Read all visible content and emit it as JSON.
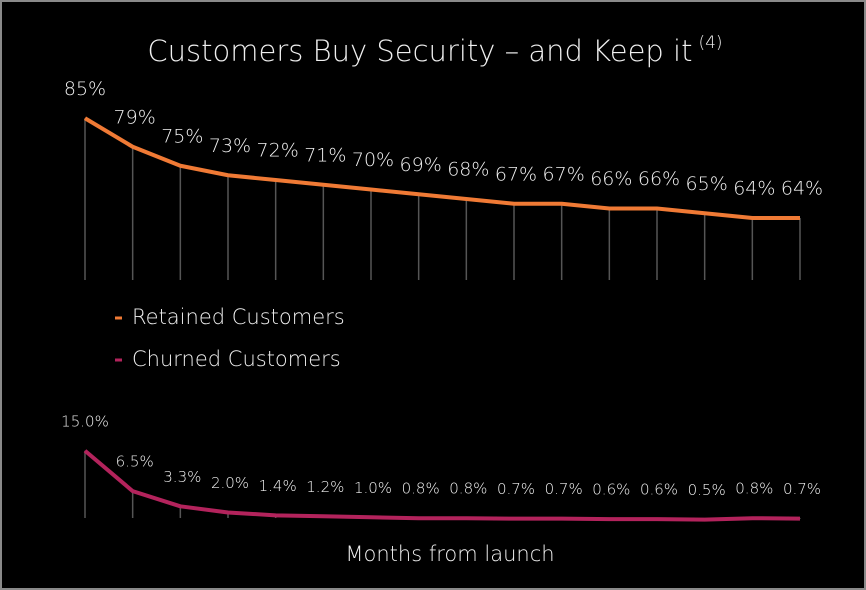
{
  "chart_data": {
    "type": "line",
    "title": "Customers Buy Security – and Keep it",
    "title_superscript": "(4)",
    "x_label": "Months from launch",
    "categories": [
      null,
      null,
      null,
      null,
      null,
      null,
      null,
      null,
      null,
      null,
      null,
      null,
      null,
      null,
      null,
      null
    ],
    "series": [
      {
        "name": "Retained Customers",
        "color": "#f07a35",
        "values": [
          85,
          79,
          75,
          73,
          72,
          71,
          70,
          69,
          68,
          67,
          67,
          66,
          66,
          65,
          64,
          64
        ],
        "value_labels": [
          "85%",
          "79%",
          "75%",
          "73%",
          "72%",
          "71%",
          "70%",
          "69%",
          "68%",
          "67%",
          "67%",
          "66%",
          "66%",
          "65%",
          "64%",
          "64%"
        ]
      },
      {
        "name": "Churned Customers",
        "color": "#b3235c",
        "values": [
          15.0,
          6.5,
          3.3,
          2.0,
          1.4,
          1.2,
          1.0,
          0.8,
          0.8,
          0.7,
          0.7,
          0.6,
          0.6,
          0.5,
          0.8,
          0.7
        ],
        "value_labels": [
          "15.0%",
          "6.5%",
          "3.3%",
          "2.0%",
          "1.4%",
          "1.2%",
          "1.0%",
          "0.8%",
          "0.8%",
          "0.7%",
          "0.7%",
          "0.6%",
          "0.6%",
          "0.5%",
          "0.8%",
          "0.7%"
        ]
      }
    ]
  }
}
